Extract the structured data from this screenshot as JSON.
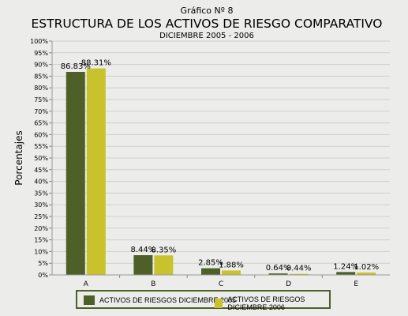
{
  "chart_data": {
    "type": "bar",
    "label": "Gráfico Nº 8",
    "title": "ESTRUCTURA DE LOS ACTIVOS DE RIESGO COMPARATIVO",
    "subtitle": "DICIEMBRE 2005 - 2006",
    "ylabel": "Porcentajes",
    "xlabel": "",
    "categories": [
      "A",
      "B",
      "C",
      "D",
      "E"
    ],
    "ylim": [
      0,
      100
    ],
    "yticks": [
      "0%",
      "5%",
      "10%",
      "15%",
      "20%",
      "25%",
      "30%",
      "35%",
      "40%",
      "45%",
      "50%",
      "55%",
      "60%",
      "65%",
      "70%",
      "75%",
      "80%",
      "85%",
      "90%",
      "95%",
      "100%"
    ],
    "grid": true,
    "legend_position": "bottom",
    "series": [
      {
        "name": "ACTIVOS DE RIESGOS DICIEMBRE 2005",
        "color": "#4e6028",
        "values": [
          86.83,
          8.44,
          2.85,
          0.64,
          1.24
        ],
        "labels": [
          "86.83%",
          "8.44%",
          "2.85%",
          "0.64%",
          "1.24%"
        ]
      },
      {
        "name": "ACTIVOS DE RIESGOS DICIEMBRE 2006",
        "color": "#c8c22c",
        "values": [
          88.31,
          8.35,
          1.88,
          0.44,
          1.02
        ],
        "labels": [
          "88.31%",
          "8.35%",
          "1.88%",
          "0.44%",
          "1.02%"
        ]
      }
    ]
  }
}
